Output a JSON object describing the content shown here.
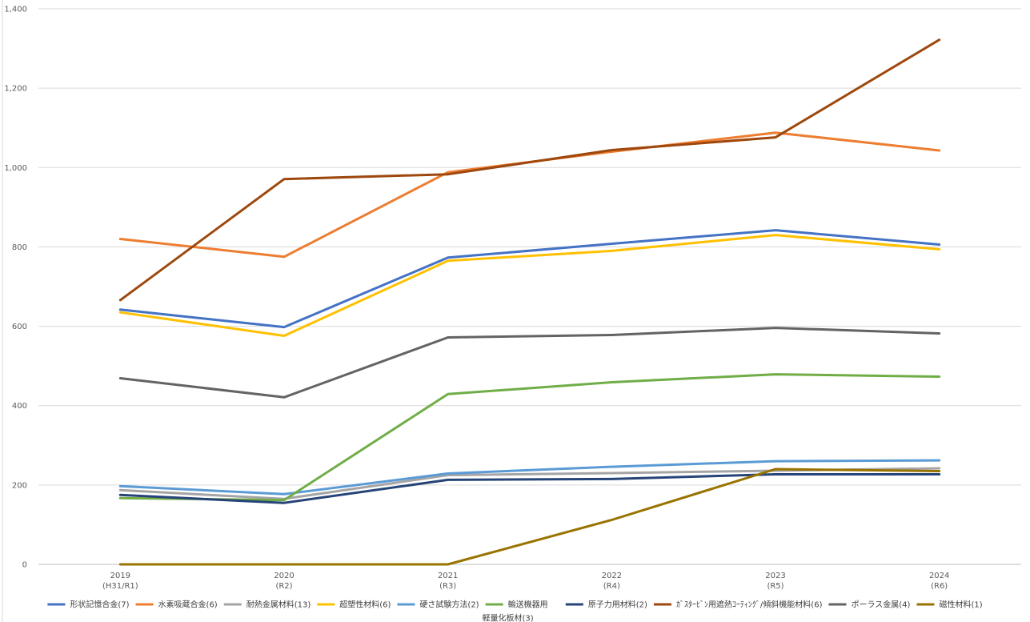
{
  "chart_data": {
    "type": "line",
    "title": "",
    "xlabel": "",
    "ylabel": "",
    "ylim": [
      0,
      1400
    ],
    "ytick_step": 200,
    "grid": true,
    "legend_position": "bottom",
    "categories": [
      [
        "2019",
        "(H31/R1)"
      ],
      [
        "2020",
        "(R2)"
      ],
      [
        "2021",
        "(R3)"
      ],
      [
        "2022",
        "(R4)"
      ],
      [
        "2023",
        "(R5)"
      ],
      [
        "2024",
        "(R6)"
      ]
    ],
    "series": [
      {
        "name": "形状記憶合金(7)",
        "color": "#4472C4",
        "values": [
          642,
          598,
          773,
          808,
          842,
          806
        ]
      },
      {
        "name": "水素吸蔵合金(6)",
        "color": "#ED7D31",
        "values": [
          820,
          775,
          988,
          1040,
          1088,
          1043
        ]
      },
      {
        "name": "耐熱金属材料(13)",
        "color": "#A5A5A5",
        "values": [
          187,
          165,
          225,
          230,
          236,
          242
        ]
      },
      {
        "name": "超塑性材料(6)",
        "color": "#FFC000",
        "values": [
          635,
          576,
          765,
          790,
          830,
          794
        ]
      },
      {
        "name": "硬さ試験方法(2)",
        "color": "#5B9BD5",
        "values": [
          197,
          177,
          229,
          246,
          260,
          262
        ]
      },
      {
        "name": "輸送機器用\n軽量化板材(3)",
        "color": "#70AD47",
        "values": [
          167,
          162,
          429,
          459,
          479,
          473
        ]
      },
      {
        "name": "原子力用材料(2)",
        "color": "#264478",
        "values": [
          175,
          155,
          213,
          215,
          227,
          227
        ]
      },
      {
        "name": "ｶﾞｽﾀｰﾋﾞﾝ用遮熱ｺｰﾃｨﾝｸﾞ/傾斜機能材料(6)",
        "color": "#9E480E",
        "values": [
          666,
          971,
          983,
          1044,
          1076,
          1322
        ]
      },
      {
        "name": "ポーラス金属(4)",
        "color": "#636363",
        "values": [
          469,
          421,
          572,
          578,
          596,
          582
        ]
      },
      {
        "name": "磁性材料(1)",
        "color": "#997300",
        "values": [
          0,
          0,
          0,
          112,
          240,
          235
        ]
      }
    ]
  }
}
